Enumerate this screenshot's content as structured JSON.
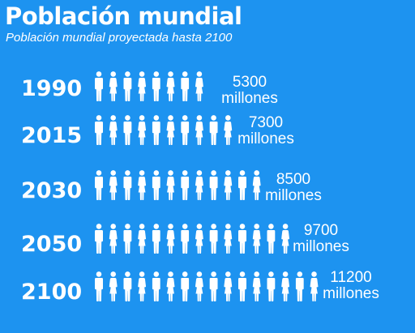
{
  "header": {
    "title": "Población mundial",
    "subtitle": "Población mundial proyectada hasta 2100"
  },
  "colors": {
    "background": "#1d93f0",
    "foreground": "#ffffff"
  },
  "chart_data": {
    "type": "pictogram",
    "title": "Población mundial",
    "subtitle": "Población mundial proyectada hasta 2100",
    "icon": "person-pair-icon",
    "categories": [
      "1990",
      "2015",
      "2030",
      "2050",
      "2100"
    ],
    "series": [
      {
        "values": [
          5300,
          7300,
          8500,
          9700,
          11200
        ],
        "labels": [
          [
            "5300",
            "millones"
          ],
          [
            "7300",
            "millones"
          ],
          [
            "8500",
            "millones"
          ],
          [
            "9700",
            "millones"
          ],
          [
            "11200",
            "millones"
          ]
        ]
      }
    ],
    "icon_pairs_per_row": [
      4,
      5,
      6,
      7,
      8
    ]
  }
}
